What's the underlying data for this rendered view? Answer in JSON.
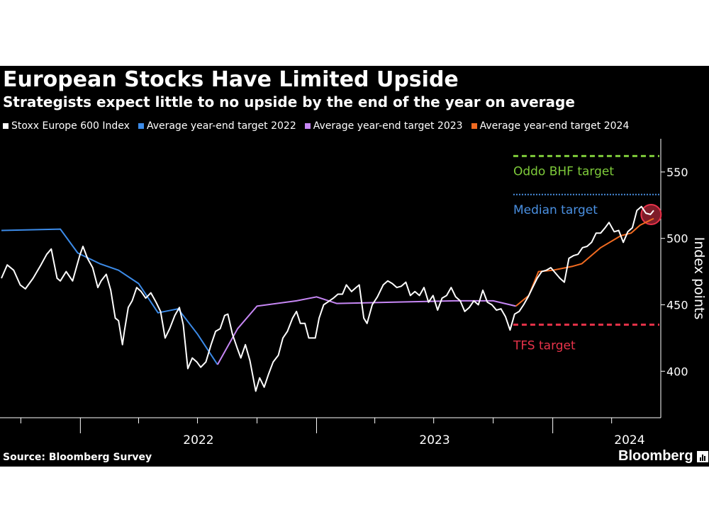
{
  "header": {
    "title": "European Stocks Have Limited Upside",
    "subtitle": "Strategists expect little to no upside by the end of the year on average"
  },
  "footer": {
    "source": "Source: Bloomberg Survey",
    "brand": "Bloomberg"
  },
  "colors": {
    "background": "#000000",
    "index": "#ffffff",
    "target_2022": "#3c8be8",
    "target_2023": "#c787f5",
    "target_2024": "#f26b21",
    "oddo": "#7ecb3a",
    "median": "#4a90e2",
    "tfs": "#e8334a"
  },
  "chart_data": {
    "type": "line",
    "ylabel": "Index points",
    "ylim": [
      365,
      575
    ],
    "y_ticks": [
      "400",
      "450",
      "500",
      "550"
    ],
    "y_tick_values": [
      400,
      450,
      500,
      550
    ],
    "x_tick_labels": [
      "2022",
      "2023",
      "2024"
    ],
    "xlim": [
      "2021-09-01",
      "2024-06-05"
    ],
    "grid": false,
    "legend_position": "top-left",
    "series": [
      {
        "name": "Stoxx Europe 600 Index",
        "color": "#ffffff",
        "points": [
          [
            "2021-09-01",
            470
          ],
          [
            "2021-09-10",
            480
          ],
          [
            "2021-09-20",
            476
          ],
          [
            "2021-09-30",
            465
          ],
          [
            "2021-10-08",
            462
          ],
          [
            "2021-10-20",
            470
          ],
          [
            "2021-11-01",
            480
          ],
          [
            "2021-11-10",
            488
          ],
          [
            "2021-11-17",
            492
          ],
          [
            "2021-11-26",
            470
          ],
          [
            "2021-12-01",
            468
          ],
          [
            "2021-12-10",
            475
          ],
          [
            "2021-12-20",
            468
          ],
          [
            "2021-12-31",
            487
          ],
          [
            "2022-01-05",
            494
          ],
          [
            "2022-01-12",
            485
          ],
          [
            "2022-01-20",
            478
          ],
          [
            "2022-01-28",
            463
          ],
          [
            "2022-02-02",
            468
          ],
          [
            "2022-02-10",
            473
          ],
          [
            "2022-02-17",
            461
          ],
          [
            "2022-02-24",
            440
          ],
          [
            "2022-03-01",
            438
          ],
          [
            "2022-03-07",
            420
          ],
          [
            "2022-03-10",
            430
          ],
          [
            "2022-03-16",
            448
          ],
          [
            "2022-03-22",
            453
          ],
          [
            "2022-03-29",
            463
          ],
          [
            "2022-04-05",
            460
          ],
          [
            "2022-04-12",
            455
          ],
          [
            "2022-04-20",
            459
          ],
          [
            "2022-04-28",
            452
          ],
          [
            "2022-05-05",
            445
          ],
          [
            "2022-05-12",
            425
          ],
          [
            "2022-05-19",
            432
          ],
          [
            "2022-05-27",
            442
          ],
          [
            "2022-06-03",
            448
          ],
          [
            "2022-06-09",
            435
          ],
          [
            "2022-06-16",
            402
          ],
          [
            "2022-06-23",
            410
          ],
          [
            "2022-06-30",
            407
          ],
          [
            "2022-07-06",
            403
          ],
          [
            "2022-07-14",
            407
          ],
          [
            "2022-07-22",
            420
          ],
          [
            "2022-07-29",
            430
          ],
          [
            "2022-08-05",
            432
          ],
          [
            "2022-08-12",
            442
          ],
          [
            "2022-08-17",
            443
          ],
          [
            "2022-08-24",
            428
          ],
          [
            "2022-08-31",
            418
          ],
          [
            "2022-09-06",
            410
          ],
          [
            "2022-09-13",
            420
          ],
          [
            "2022-09-20",
            408
          ],
          [
            "2022-09-29",
            385
          ],
          [
            "2022-10-05",
            395
          ],
          [
            "2022-10-12",
            388
          ],
          [
            "2022-10-19",
            398
          ],
          [
            "2022-10-26",
            407
          ],
          [
            "2022-11-03",
            412
          ],
          [
            "2022-11-10",
            425
          ],
          [
            "2022-11-17",
            430
          ],
          [
            "2022-11-25",
            440
          ],
          [
            "2022-12-01",
            445
          ],
          [
            "2022-12-07",
            436
          ],
          [
            "2022-12-14",
            436
          ],
          [
            "2022-12-20",
            425
          ],
          [
            "2022-12-30",
            425
          ],
          [
            "2023-01-05",
            440
          ],
          [
            "2023-01-12",
            450
          ],
          [
            "2023-01-18",
            452
          ],
          [
            "2023-01-27",
            455
          ],
          [
            "2023-02-03",
            458
          ],
          [
            "2023-02-10",
            458
          ],
          [
            "2023-02-16",
            465
          ],
          [
            "2023-02-24",
            460
          ],
          [
            "2023-03-03",
            463
          ],
          [
            "2023-03-08",
            465
          ],
          [
            "2023-03-15",
            440
          ],
          [
            "2023-03-20",
            436
          ],
          [
            "2023-03-28",
            450
          ],
          [
            "2023-04-05",
            456
          ],
          [
            "2023-04-14",
            465
          ],
          [
            "2023-04-21",
            468
          ],
          [
            "2023-04-28",
            466
          ],
          [
            "2023-05-05",
            463
          ],
          [
            "2023-05-12",
            464
          ],
          [
            "2023-05-19",
            467
          ],
          [
            "2023-05-26",
            457
          ],
          [
            "2023-06-02",
            460
          ],
          [
            "2023-06-09",
            457
          ],
          [
            "2023-06-16",
            463
          ],
          [
            "2023-06-23",
            452
          ],
          [
            "2023-06-30",
            457
          ],
          [
            "2023-07-07",
            446
          ],
          [
            "2023-07-14",
            455
          ],
          [
            "2023-07-21",
            457
          ],
          [
            "2023-07-28",
            463
          ],
          [
            "2023-08-04",
            456
          ],
          [
            "2023-08-11",
            453
          ],
          [
            "2023-08-18",
            445
          ],
          [
            "2023-08-25",
            448
          ],
          [
            "2023-09-01",
            453
          ],
          [
            "2023-09-08",
            450
          ],
          [
            "2023-09-15",
            461
          ],
          [
            "2023-09-22",
            452
          ],
          [
            "2023-09-29",
            450
          ],
          [
            "2023-10-06",
            446
          ],
          [
            "2023-10-13",
            447
          ],
          [
            "2023-10-20",
            441
          ],
          [
            "2023-10-27",
            431
          ],
          [
            "2023-11-03",
            443
          ],
          [
            "2023-11-10",
            445
          ],
          [
            "2023-11-17",
            450
          ],
          [
            "2023-11-24",
            456
          ],
          [
            "2023-12-01",
            463
          ],
          [
            "2023-12-08",
            470
          ],
          [
            "2023-12-15",
            475
          ],
          [
            "2023-12-22",
            476
          ],
          [
            "2023-12-29",
            478
          ],
          [
            "2024-01-05",
            474
          ],
          [
            "2024-01-12",
            470
          ],
          [
            "2024-01-19",
            467
          ],
          [
            "2024-01-26",
            485
          ],
          [
            "2024-02-02",
            487
          ],
          [
            "2024-02-09",
            488
          ],
          [
            "2024-02-16",
            493
          ],
          [
            "2024-02-23",
            494
          ],
          [
            "2024-03-01",
            497
          ],
          [
            "2024-03-08",
            504
          ],
          [
            "2024-03-15",
            504
          ],
          [
            "2024-03-22",
            508
          ],
          [
            "2024-03-28",
            512
          ],
          [
            "2024-04-05",
            505
          ],
          [
            "2024-04-12",
            506
          ],
          [
            "2024-04-19",
            497
          ],
          [
            "2024-04-26",
            505
          ],
          [
            "2024-05-03",
            508
          ],
          [
            "2024-05-10",
            521
          ],
          [
            "2024-05-17",
            524
          ],
          [
            "2024-05-24",
            519
          ],
          [
            "2024-05-31",
            518
          ],
          [
            "2024-06-05",
            521
          ]
        ]
      },
      {
        "name": "Average year-end target 2022",
        "color": "#3c8be8",
        "points": [
          [
            "2021-09-01",
            506
          ],
          [
            "2021-12-01",
            507
          ],
          [
            "2021-12-28",
            489
          ],
          [
            "2022-01-31",
            481
          ],
          [
            "2022-03-01",
            476
          ],
          [
            "2022-04-01",
            466
          ],
          [
            "2022-05-01",
            444
          ],
          [
            "2022-06-01",
            447
          ],
          [
            "2022-07-01",
            428
          ],
          [
            "2022-08-01",
            405
          ]
        ]
      },
      {
        "name": "Average year-end target 2023",
        "color": "#c787f5",
        "points": [
          [
            "2022-08-01",
            405
          ],
          [
            "2022-09-01",
            432
          ],
          [
            "2022-10-01",
            449
          ],
          [
            "2022-12-01",
            453
          ],
          [
            "2023-01-01",
            456
          ],
          [
            "2023-02-01",
            451
          ],
          [
            "2023-05-01",
            452
          ],
          [
            "2023-08-01",
            453
          ],
          [
            "2023-10-01",
            453
          ],
          [
            "2023-11-05",
            449
          ]
        ]
      },
      {
        "name": "Average year-end target 2024",
        "color": "#f26b21",
        "points": [
          [
            "2023-11-05",
            449
          ],
          [
            "2023-11-25",
            457
          ],
          [
            "2023-12-10",
            475
          ],
          [
            "2024-01-01",
            476
          ],
          [
            "2024-02-01",
            479
          ],
          [
            "2024-02-15",
            481
          ],
          [
            "2024-03-15",
            493
          ],
          [
            "2024-04-15",
            502
          ],
          [
            "2024-05-01",
            504
          ],
          [
            "2024-05-15",
            510
          ],
          [
            "2024-06-05",
            515
          ]
        ]
      }
    ],
    "reference_lines": [
      {
        "label": "Oddo BHF target",
        "value": 562,
        "color": "#7ecb3a",
        "style": "dashed",
        "start": "2023-11-01"
      },
      {
        "label": "Median target",
        "value": 533,
        "color": "#4a90e2",
        "style": "dotted",
        "start": "2023-11-01"
      },
      {
        "label": "TFS target",
        "value": 435,
        "color": "#e8334a",
        "style": "dashed",
        "start": "2023-11-01"
      }
    ],
    "highlight": {
      "date": "2024-06-01",
      "value": 518,
      "color": "#e8334a"
    }
  }
}
